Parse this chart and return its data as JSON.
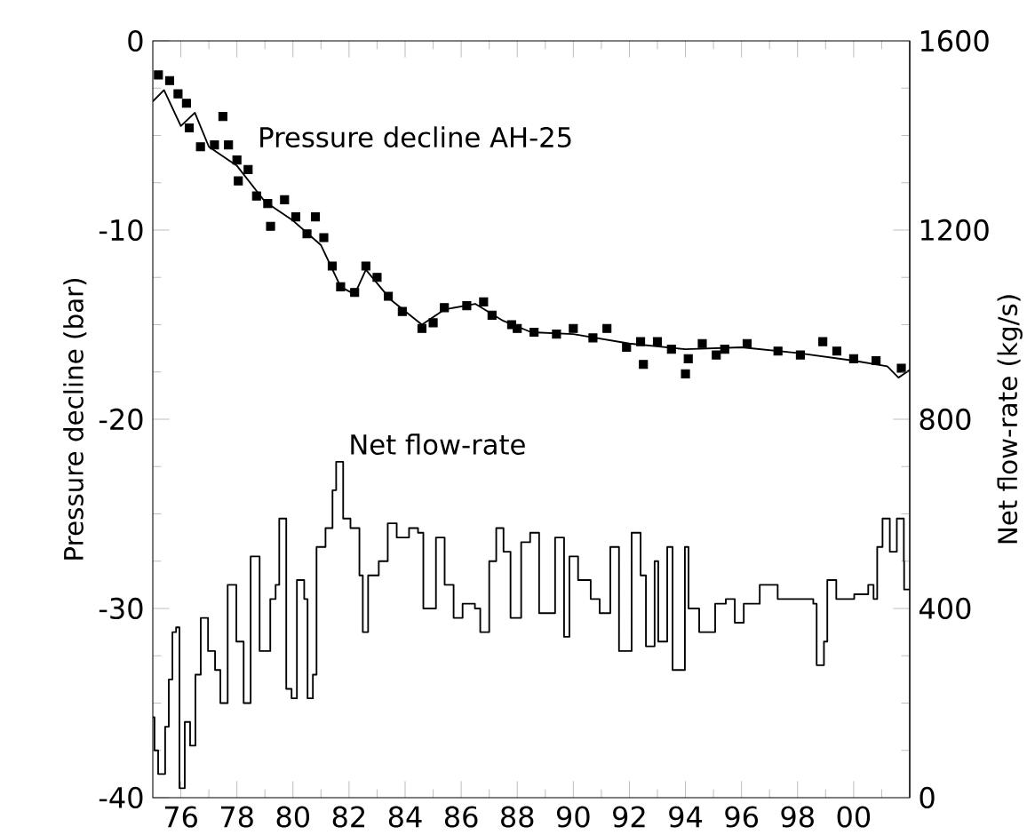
{
  "chart_data": {
    "type": "scatter",
    "ylabel": "Pressure decline (bar)",
    "y2label": "Net flow-rate (kg/s)",
    "xlim": [
      1975,
      2002
    ],
    "ylim": [
      -40,
      0
    ],
    "y2lim": [
      0,
      1600
    ],
    "xticks": [
      {
        "value": 1976,
        "label": "76"
      },
      {
        "value": 1977,
        "label": null
      },
      {
        "value": 1978,
        "label": "78"
      },
      {
        "value": 1979,
        "label": null
      },
      {
        "value": 1980,
        "label": "80"
      },
      {
        "value": 1981,
        "label": null
      },
      {
        "value": 1982,
        "label": "82"
      },
      {
        "value": 1983,
        "label": null
      },
      {
        "value": 1984,
        "label": "84"
      },
      {
        "value": 1985,
        "label": null
      },
      {
        "value": 1986,
        "label": "86"
      },
      {
        "value": 1987,
        "label": null
      },
      {
        "value": 1988,
        "label": "88"
      },
      {
        "value": 1989,
        "label": null
      },
      {
        "value": 1990,
        "label": "90"
      },
      {
        "value": 1991,
        "label": null
      },
      {
        "value": 1992,
        "label": "92"
      },
      {
        "value": 1993,
        "label": null
      },
      {
        "value": 1994,
        "label": "94"
      },
      {
        "value": 1995,
        "label": null
      },
      {
        "value": 1996,
        "label": "96"
      },
      {
        "value": 1997,
        "label": null
      },
      {
        "value": 1998,
        "label": "98"
      },
      {
        "value": 1999,
        "label": null
      },
      {
        "value": 2000,
        "label": "00"
      },
      {
        "value": 2001,
        "label": null
      }
    ],
    "yticks": [
      -40,
      {
        "value": -37.5,
        "label": null
      },
      {
        "value": -35,
        "label": null
      },
      {
        "value": -32.5,
        "label": null
      },
      -30,
      {
        "value": -27.5,
        "label": null
      },
      {
        "value": -25,
        "label": null
      },
      {
        "value": -22.5,
        "label": null
      },
      -20,
      {
        "value": -17.5,
        "label": null
      },
      {
        "value": -15,
        "label": null
      },
      {
        "value": -12.5,
        "label": null
      },
      -10,
      {
        "value": -7.5,
        "label": null
      },
      {
        "value": -5,
        "label": null
      },
      {
        "value": -2.5,
        "label": null
      },
      0
    ],
    "y2ticks": [
      0,
      {
        "value": 100,
        "label": null
      },
      {
        "value": 200,
        "label": null
      },
      {
        "value": 300,
        "label": null
      },
      400,
      {
        "value": 500,
        "label": null
      },
      {
        "value": 600,
        "label": null
      },
      {
        "value": 700,
        "label": null
      },
      800,
      {
        "value": 900,
        "label": null
      },
      {
        "value": 1000,
        "label": null
      },
      {
        "value": 1100,
        "label": null
      },
      1200,
      {
        "value": 1300,
        "label": null
      },
      {
        "value": 1400,
        "label": null
      },
      {
        "value": 1500,
        "label": null
      },
      1600
    ],
    "series": [
      {
        "name": "Pressure decline AH-25",
        "marker": "square",
        "color": "#000000",
        "x": [
          1975.2,
          1975.6,
          1975.9,
          1976.2,
          1976.3,
          1976.7,
          1977.2,
          1977.5,
          1977.7,
          1978.0,
          1978.05,
          1978.4,
          1978.7,
          1979.1,
          1979.2,
          1979.7,
          1980.1,
          1980.5,
          1980.8,
          1981.1,
          1981.4,
          1981.7,
          1982.2,
          1982.6,
          1983.0,
          1983.4,
          1983.9,
          1984.6,
          1985.0,
          1985.4,
          1986.2,
          1986.8,
          1987.1,
          1987.8,
          1988.0,
          1988.6,
          1989.4,
          1990.0,
          1990.7,
          1991.2,
          1991.9,
          1992.4,
          1992.5,
          1993.0,
          1993.5,
          1994.0,
          1994.1,
          1994.6,
          1995.1,
          1995.4,
          1996.2,
          1997.3,
          1998.1,
          1998.9,
          1999.4,
          2000.0,
          2000.8,
          2001.7
        ],
        "values": [
          -1.8,
          -2.1,
          -2.8,
          -3.3,
          -4.6,
          -5.6,
          -5.5,
          -4.0,
          -5.5,
          -6.3,
          -7.4,
          -6.8,
          -8.2,
          -8.6,
          -9.8,
          -8.4,
          -9.3,
          -10.2,
          -9.3,
          -10.4,
          -11.9,
          -13.0,
          -13.3,
          -11.9,
          -12.5,
          -13.5,
          -14.3,
          -15.2,
          -14.9,
          -14.1,
          -14.0,
          -13.8,
          -14.5,
          -15.0,
          -15.2,
          -15.4,
          -15.5,
          -15.2,
          -15.7,
          -15.2,
          -16.2,
          -15.9,
          -17.1,
          -15.9,
          -16.3,
          -17.6,
          -16.8,
          -16.0,
          -16.6,
          -16.3,
          -16.0,
          -16.4,
          -16.6,
          -15.9,
          -16.4,
          -16.8,
          -16.9,
          -17.3
        ]
      },
      {
        "type": "line",
        "color": "#000000",
        "x": [
          1975.0,
          1975.4,
          1976.0,
          1976.5,
          1977.0,
          1978.0,
          1979.0,
          1980.0,
          1981.0,
          1981.7,
          1982.2,
          1982.6,
          1983.5,
          1984.6,
          1985.4,
          1986.5,
          1987.5,
          1988.5,
          1990.0,
          1992.0,
          1994.0,
          1996.0,
          1998.0,
          2000.0,
          2001.2,
          2001.6,
          2002.0
        ],
        "values": [
          -3.2,
          -2.6,
          -4.5,
          -3.8,
          -5.6,
          -6.6,
          -8.5,
          -9.5,
          -10.8,
          -13.0,
          -13.4,
          -12.1,
          -13.7,
          -15.0,
          -14.2,
          -13.9,
          -14.8,
          -15.4,
          -15.5,
          -16.0,
          -16.3,
          -16.2,
          -16.5,
          -16.9,
          -17.2,
          -17.8,
          -17.4
        ]
      },
      {
        "name": "Net flow-rate",
        "type": "step",
        "axis": "y2",
        "color": "#000000",
        "x": [
          1975.0,
          1975.06,
          1975.19,
          1975.44,
          1975.57,
          1975.7,
          1975.83,
          1975.95,
          1976.14,
          1976.33,
          1976.52,
          1976.71,
          1976.97,
          1977.22,
          1977.41,
          1977.67,
          1977.98,
          1978.24,
          1978.49,
          1978.81,
          1979.19,
          1979.38,
          1979.51,
          1979.76,
          1979.95,
          1980.14,
          1980.4,
          1980.52,
          1980.71,
          1980.84,
          1981.16,
          1981.41,
          1981.54,
          1981.79,
          1982.05,
          1982.37,
          1982.49,
          1982.68,
          1983.06,
          1983.38,
          1983.7,
          1984.14,
          1984.46,
          1984.65,
          1985.1,
          1985.41,
          1985.73,
          1986.05,
          1986.49,
          1986.68,
          1987.0,
          1987.25,
          1987.51,
          1987.76,
          1988.14,
          1988.46,
          1988.78,
          1989.35,
          1989.67,
          1989.86,
          1990.17,
          1990.62,
          1990.94,
          1991.32,
          1991.63,
          1992.08,
          1992.4,
          1992.59,
          1992.9,
          1993.03,
          1993.35,
          1993.54,
          1993.98,
          1994.11,
          1994.49,
          1995.06,
          1995.44,
          1995.76,
          1996.08,
          1996.65,
          1997.29,
          1997.6,
          1998.11,
          1998.56,
          1998.68,
          1998.94,
          1999.06,
          1999.38,
          2000.02,
          2000.52,
          2000.71,
          2000.84,
          2001.03,
          2001.29,
          2001.54,
          2001.79,
          2001.8,
          2002.0
        ],
        "values": [
          170,
          100,
          50,
          150,
          250,
          350,
          360,
          20,
          160,
          110,
          260,
          380,
          310,
          270,
          200,
          450,
          330,
          200,
          510,
          310,
          420,
          450,
          590,
          230,
          210,
          460,
          420,
          210,
          260,
          530,
          570,
          650,
          710,
          590,
          570,
          470,
          350,
          470,
          500,
          580,
          550,
          570,
          560,
          400,
          550,
          450,
          380,
          410,
          400,
          350,
          500,
          570,
          520,
          380,
          540,
          560,
          390,
          550,
          340,
          510,
          460,
          420,
          390,
          530,
          310,
          560,
          470,
          320,
          500,
          330,
          530,
          270,
          530,
          400,
          350,
          410,
          420,
          370,
          410,
          450,
          420,
          420,
          420,
          410,
          280,
          330,
          460,
          420,
          430,
          450,
          420,
          530,
          590,
          520,
          590,
          500,
          440,
          440
        ]
      }
    ]
  }
}
